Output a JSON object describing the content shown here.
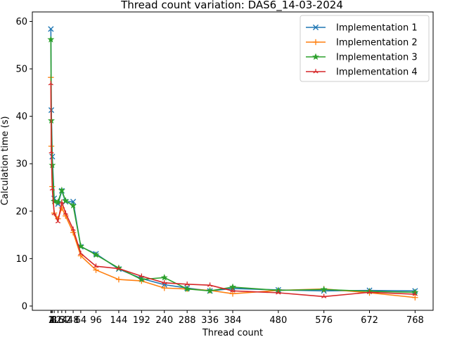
{
  "chart_data": {
    "type": "line",
    "title": "Thread count variation: DAS6_14-03-2024",
    "xlabel": "Thread count",
    "ylabel": "Calculation time (s)",
    "xlim": [
      -38,
      806
    ],
    "ylim": [
      -0.9,
      62
    ],
    "x_ticks": [
      1,
      2,
      4,
      8,
      16,
      24,
      32,
      48,
      64,
      96,
      144,
      192,
      240,
      288,
      336,
      384,
      480,
      576,
      672,
      768
    ],
    "x_tick_labels": [
      "1",
      "2",
      "4",
      "8",
      "16",
      "24",
      "32",
      "48",
      "64",
      "96",
      "144",
      "192",
      "240",
      "288",
      "336",
      "384",
      "480",
      "576",
      "672",
      "768"
    ],
    "y_ticks": [
      0,
      10,
      20,
      30,
      40,
      50,
      60
    ],
    "legend_position": "top-right",
    "grid": false,
    "series": [
      {
        "name": "Implementation 1",
        "color": "#1f77b4",
        "marker": "x",
        "x": [
          1,
          2,
          4,
          8,
          16,
          24,
          32,
          48,
          64,
          96,
          144,
          192,
          240,
          288,
          336,
          384,
          480,
          576,
          672,
          768
        ],
        "y": [
          58.4,
          41.3,
          31.5,
          22.7,
          21.5,
          24.3,
          22.0,
          22.0,
          12.5,
          11.0,
          7.8,
          5.8,
          4.5,
          3.8,
          3.2,
          3.7,
          3.4,
          3.2,
          3.3,
          3.2
        ]
      },
      {
        "name": "Implementation 2",
        "color": "#ff7f0e",
        "marker": "+",
        "x": [
          1,
          2,
          4,
          8,
          16,
          24,
          32,
          48,
          64,
          96,
          144,
          192,
          240,
          288,
          336,
          384,
          480,
          576,
          672,
          768
        ],
        "y": [
          48.2,
          33.7,
          25.2,
          19.6,
          18.4,
          20.7,
          19.0,
          15.5,
          10.6,
          7.6,
          5.6,
          5.3,
          3.8,
          3.6,
          3.3,
          2.6,
          3.3,
          3.6,
          2.8,
          1.8
        ]
      },
      {
        "name": "Implementation 3",
        "color": "#2ca02c",
        "marker": "star",
        "x": [
          1,
          2,
          4,
          8,
          16,
          24,
          32,
          48,
          64,
          96,
          144,
          192,
          240,
          288,
          336,
          384,
          480,
          576,
          672,
          768
        ],
        "y": [
          56.2,
          39.1,
          29.7,
          22.1,
          21.9,
          24.4,
          22.2,
          21.2,
          12.6,
          10.8,
          8.0,
          5.6,
          6.0,
          3.6,
          3.2,
          4.0,
          3.3,
          3.5,
          3.1,
          2.9
        ]
      },
      {
        "name": "Implementation 4",
        "color": "#d62728",
        "marker": "tri",
        "x": [
          1,
          2,
          4,
          8,
          16,
          24,
          32,
          48,
          64,
          96,
          144,
          192,
          240,
          288,
          336,
          384,
          480,
          576,
          672,
          768
        ],
        "y": [
          46.9,
          32.5,
          24.7,
          19.5,
          17.8,
          21.9,
          19.6,
          16.2,
          11.1,
          8.4,
          7.9,
          6.3,
          4.9,
          4.6,
          4.4,
          3.2,
          2.8,
          2.0,
          2.9,
          2.5
        ]
      }
    ]
  }
}
